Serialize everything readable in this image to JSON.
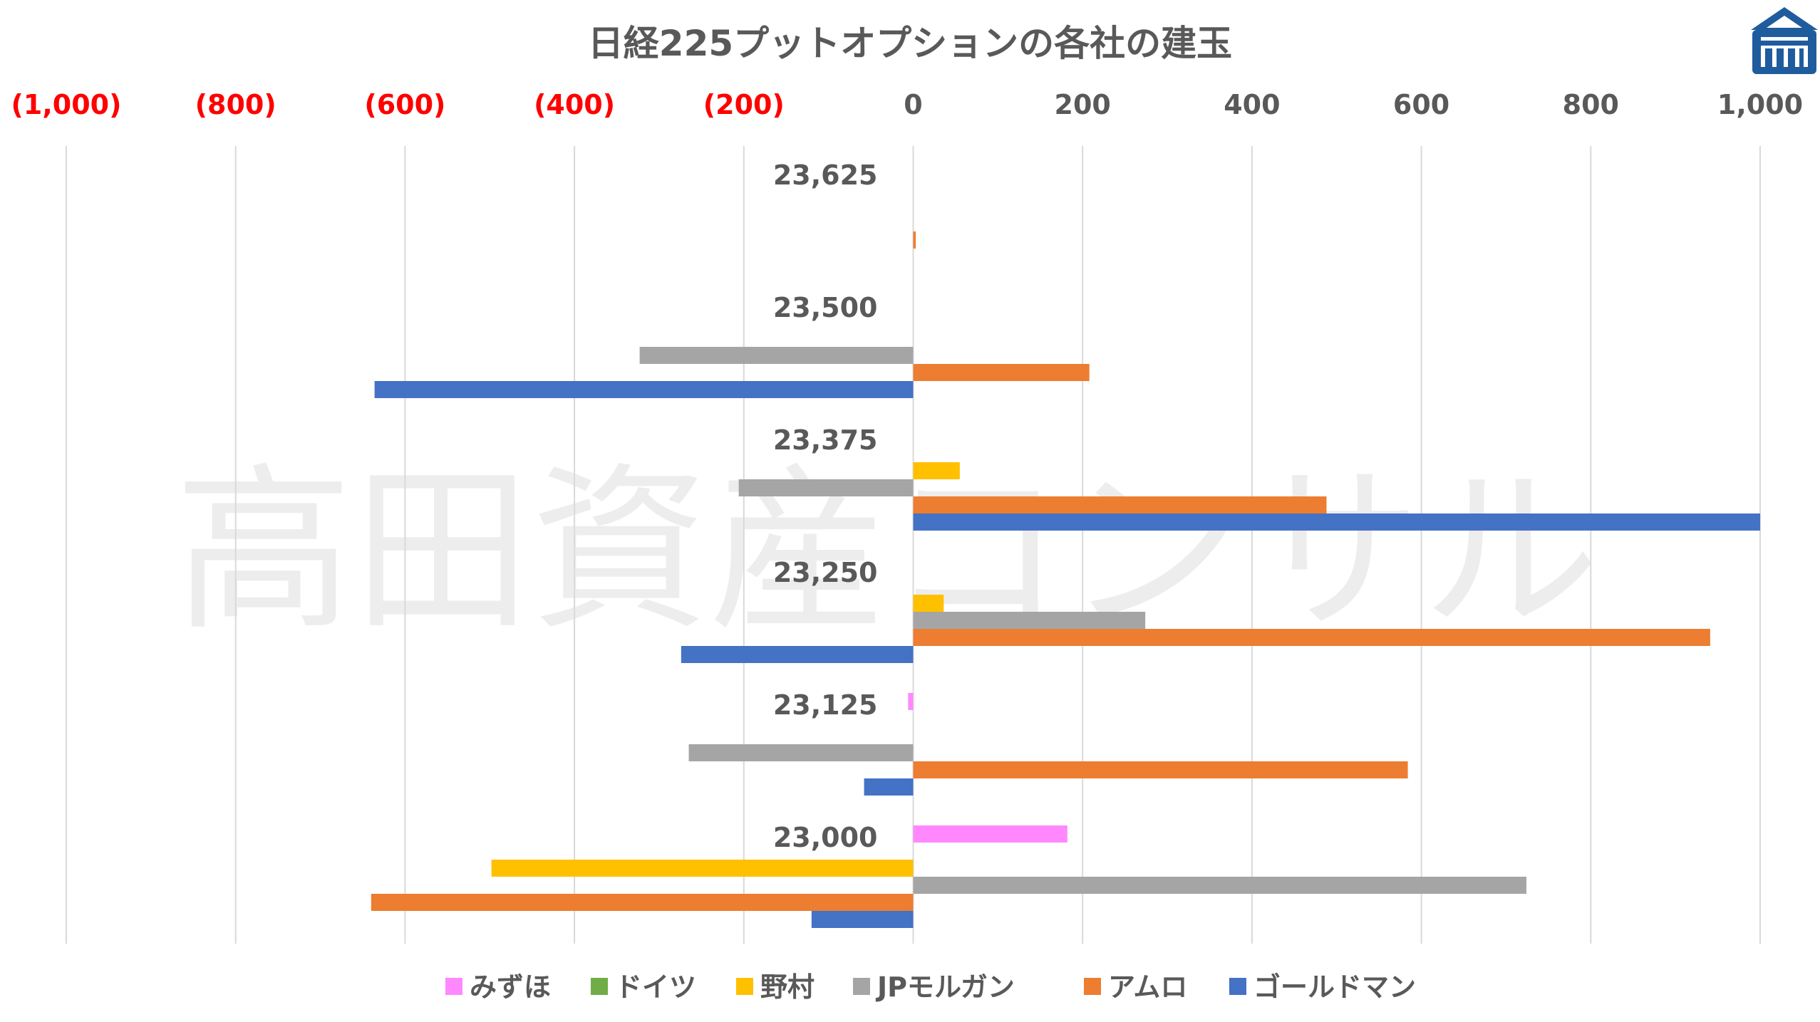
{
  "chart_data": {
    "type": "bar",
    "orientation": "horizontal",
    "title": "日経225プットオプションの各社の建玉",
    "watermark": "高田資産コンサル",
    "xlim": [
      -1000,
      1000
    ],
    "x_ticks": [
      -1000,
      -800,
      -600,
      -400,
      -200,
      0,
      200,
      400,
      600,
      800,
      1000
    ],
    "x_tick_labels": [
      "(1,000)",
      "(800)",
      "(600)",
      "(400)",
      "(200)",
      "0",
      "200",
      "400",
      "600",
      "800",
      "1,000"
    ],
    "negative_tick_color": "#ff0000",
    "positive_tick_color": "#595959",
    "grid": "vertical",
    "legend_position": "bottom",
    "categories": [
      "23,625",
      "23,500",
      "23,375",
      "23,250",
      "23,125",
      "23,000"
    ],
    "series": [
      {
        "name": "みずほ",
        "color": "#ff88ff",
        "values": [
          0,
          0,
          0,
          0,
          -6,
          182
        ]
      },
      {
        "name": "ドイツ",
        "color": "#70ad47",
        "values": [
          0,
          0,
          0,
          0,
          0,
          0
        ]
      },
      {
        "name": "野村",
        "color": "#ffc000",
        "values": [
          0,
          0,
          55,
          36,
          0,
          -498
        ]
      },
      {
        "name": "JPモルガン",
        "color": "#a5a5a5",
        "values": [
          0,
          -323,
          -206,
          274,
          -265,
          724
        ]
      },
      {
        "name": "アムロ",
        "color": "#ed7d31",
        "values": [
          3,
          208,
          488,
          941,
          584,
          -640
        ]
      },
      {
        "name": "ゴールドマン",
        "color": "#4472c4",
        "values": [
          0,
          -636,
          1000,
          -274,
          -58,
          -120
        ]
      }
    ]
  }
}
